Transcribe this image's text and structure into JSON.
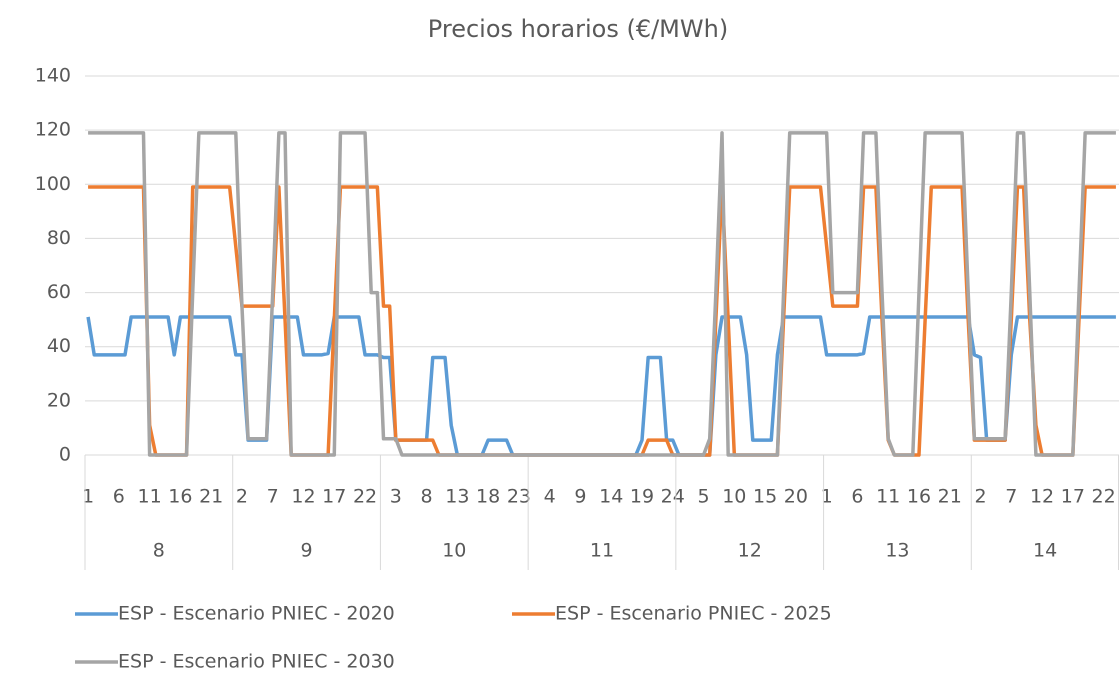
{
  "chart_data": {
    "type": "line",
    "title": "Precios horarios (€/MWh)",
    "categories": [
      "1",
      null,
      null,
      null,
      null,
      "6",
      null,
      null,
      null,
      null,
      "11",
      null,
      null,
      null,
      null,
      "16",
      null,
      null,
      null,
      null,
      "21",
      null,
      null,
      null,
      null,
      "2",
      null,
      null,
      null,
      null,
      "7",
      null,
      null,
      null,
      null,
      "12",
      null,
      null,
      null,
      null,
      "17",
      null,
      null,
      null,
      null,
      "22",
      null,
      null,
      null,
      null,
      "3",
      null,
      null,
      null,
      null,
      "8",
      null,
      null,
      null,
      null,
      "13",
      null,
      null,
      null,
      null,
      "18",
      null,
      null,
      null,
      null,
      "23",
      null,
      null,
      null,
      null,
      "4",
      null,
      null,
      null,
      null,
      "9",
      null,
      null,
      null,
      null,
      "14",
      null,
      null,
      null,
      null,
      "19",
      null,
      null,
      null,
      null,
      "24",
      null,
      null,
      null,
      null,
      "5",
      null,
      null,
      null,
      null,
      "10",
      null,
      null,
      null,
      null,
      "15",
      null,
      null,
      null,
      null,
      "20",
      null,
      null,
      null,
      null,
      "1",
      null,
      null,
      null,
      null,
      "6",
      null,
      null,
      null,
      null,
      "11",
      null,
      null,
      null,
      null,
      "16",
      null,
      null,
      null,
      null,
      "21",
      null,
      null,
      null,
      null,
      "2",
      null,
      null,
      null,
      null,
      "7",
      null,
      null,
      null,
      null,
      "12",
      null,
      null,
      null,
      null,
      "17",
      null,
      null,
      null,
      null,
      "22",
      null,
      null
    ],
    "groups": [
      "8",
      "9",
      "10",
      "11",
      "12",
      "13",
      "14"
    ],
    "series": [
      {
        "name": "ESP - Escenario PNIEC - 2020",
        "color": "#5b9bd5",
        "values": [
          51,
          37,
          37,
          37,
          37,
          37,
          37,
          51,
          51,
          51,
          51,
          51,
          51,
          51,
          37,
          51,
          51,
          51,
          51,
          51,
          51,
          51,
          51,
          51,
          37,
          37,
          5.5,
          5.5,
          5.5,
          5.5,
          51,
          51,
          51,
          51,
          51,
          37,
          37,
          37,
          37,
          37.5,
          51,
          51,
          51,
          51,
          51,
          37,
          37,
          37,
          36,
          36,
          5.5,
          5.5,
          5.5,
          5.5,
          5.5,
          5.5,
          36,
          36,
          36,
          11,
          0,
          0,
          0,
          0,
          0,
          5.5,
          5.5,
          5.5,
          5.5,
          0,
          0,
          0,
          0,
          0,
          0,
          0,
          0,
          0,
          0,
          0,
          0,
          0,
          0,
          0,
          0,
          0,
          0,
          0,
          0,
          0,
          5.5,
          36,
          36,
          36,
          5.5,
          5.5,
          0,
          0,
          0,
          0,
          0,
          0,
          37,
          51,
          51,
          51,
          51,
          37,
          5.5,
          5.5,
          5.5,
          5.5,
          37,
          51,
          51,
          51,
          51,
          51,
          51,
          51,
          37,
          37,
          37,
          37,
          37,
          37,
          37.5,
          51,
          51,
          51,
          51,
          51,
          51,
          51,
          51,
          51,
          51,
          51,
          51,
          51,
          51,
          51,
          51,
          51,
          37,
          36,
          5.5,
          5.5,
          5.5,
          5.5,
          37,
          51,
          51,
          51,
          51,
          51,
          51,
          51,
          51,
          51,
          51,
          51,
          51,
          51,
          51,
          51,
          51,
          51
        ]
      },
      {
        "name": "ESP - Escenario PNIEC - 2025",
        "color": "#ed7d31",
        "values": [
          99,
          99,
          99,
          99,
          99,
          99,
          99,
          99,
          99,
          99,
          11,
          0,
          0,
          0,
          0,
          0,
          0,
          99,
          99,
          99,
          99,
          99,
          99,
          99,
          77,
          55,
          55,
          55,
          55,
          55,
          55,
          99,
          50,
          0,
          0,
          0,
          0,
          0,
          0,
          0,
          50,
          99,
          99,
          99,
          99,
          99,
          99,
          99,
          55,
          55,
          5.5,
          5.5,
          5.5,
          5.5,
          5.5,
          5.5,
          5.5,
          0,
          0,
          0,
          0,
          0,
          0,
          0,
          0,
          0,
          0,
          0,
          0,
          0,
          0,
          0,
          0,
          0,
          0,
          0,
          0,
          0,
          0,
          0,
          0,
          0,
          0,
          0,
          0,
          0,
          0,
          0,
          0,
          0,
          0,
          5.5,
          5.5,
          5.5,
          5.5,
          0,
          0,
          0,
          0,
          0,
          0,
          0,
          50,
          99,
          50,
          0,
          0,
          0,
          0,
          0,
          0,
          0,
          0,
          50,
          99,
          99,
          99,
          99,
          99,
          99,
          77,
          55,
          55,
          55,
          55,
          55,
          99,
          99,
          99,
          50,
          5.5,
          0,
          0,
          0,
          0,
          0,
          50,
          99,
          99,
          99,
          99,
          99,
          99,
          50,
          5.5,
          5.5,
          5.5,
          5.5,
          5.5,
          5.5,
          50,
          99,
          99,
          50,
          11,
          0,
          0,
          0,
          0,
          0,
          0,
          50,
          99,
          99,
          99,
          99,
          99,
          99
        ]
      },
      {
        "name": "ESP - Escenario PNIEC - 2030",
        "color": "#a5a5a5",
        "values": [
          119,
          119,
          119,
          119,
          119,
          119,
          119,
          119,
          119,
          119,
          0,
          0,
          0,
          0,
          0,
          0,
          0,
          60,
          119,
          119,
          119,
          119,
          119,
          119,
          119,
          55,
          6,
          6,
          6,
          6,
          60,
          119,
          119,
          0,
          0,
          0,
          0,
          0,
          0,
          0,
          0,
          119,
          119,
          119,
          119,
          119,
          60,
          60,
          6,
          6,
          6,
          0,
          0,
          0,
          0,
          0,
          0,
          0,
          0,
          0,
          0,
          0,
          0,
          0,
          0,
          0,
          0,
          0,
          0,
          0,
          0,
          0,
          0,
          0,
          0,
          0,
          0,
          0,
          0,
          0,
          0,
          0,
          0,
          0,
          0,
          0,
          0,
          0,
          0,
          0,
          0,
          0,
          0,
          0,
          0,
          0,
          0,
          0,
          0,
          0,
          0,
          6,
          60,
          119,
          0,
          0,
          0,
          0,
          0,
          0,
          0,
          0,
          0,
          60,
          119,
          119,
          119,
          119,
          119,
          119,
          119,
          60,
          60,
          60,
          60,
          60,
          119,
          119,
          119,
          60,
          6,
          0,
          0,
          0,
          0,
          60,
          119,
          119,
          119,
          119,
          119,
          119,
          119,
          60,
          6,
          6,
          6,
          6,
          6,
          6,
          60,
          119,
          119,
          60,
          0,
          0,
          0,
          0,
          0,
          0,
          0,
          60,
          119,
          119,
          119,
          119,
          119,
          119
        ]
      }
    ],
    "ylim": [
      0,
      140
    ],
    "yticks": [
      0,
      20,
      40,
      60,
      80,
      100,
      120,
      140
    ],
    "grid": true,
    "legend": "bottom"
  }
}
